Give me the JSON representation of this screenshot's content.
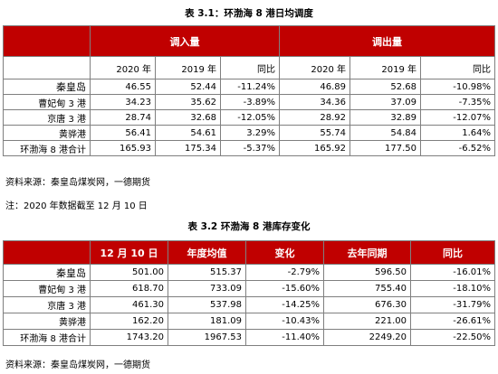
{
  "table1": {
    "caption": "表 3.1：环渤海 8 港日均调度",
    "group_headers": [
      "调入量",
      "调出量"
    ],
    "sub_headers": [
      "2020 年",
      "2019 年",
      "同比",
      "2020 年",
      "2019 年",
      "同比"
    ],
    "rows": [
      {
        "name": "秦皇岛",
        "values": [
          "46.55",
          "52.44",
          "-11.24%",
          "46.89",
          "52.68",
          "-10.98%"
        ]
      },
      {
        "name": "曹妃甸 3 港",
        "values": [
          "34.23",
          "35.62",
          "-3.89%",
          "34.36",
          "37.09",
          "-7.35%"
        ]
      },
      {
        "name": "京唐 3 港",
        "values": [
          "28.74",
          "32.68",
          "-12.05%",
          "28.92",
          "32.89",
          "-12.07%"
        ]
      },
      {
        "name": "黄骅港",
        "values": [
          "56.41",
          "54.61",
          "3.29%",
          "55.74",
          "54.84",
          "1.64%"
        ]
      },
      {
        "name": "环渤海 8 港合计",
        "values": [
          "165.93",
          "175.34",
          "-5.37%",
          "165.92",
          "177.50",
          "-6.52%"
        ]
      }
    ]
  },
  "source1": "资料来源：秦皇岛煤炭网，一德期货",
  "note": "注：2020 年数据截至 12 月 10 日",
  "table2": {
    "caption": "表 3.2 环渤海 8 港库存变化",
    "headers": [
      "12 月 10 日",
      "年度均值",
      "变化",
      "去年同期",
      "同比"
    ],
    "rows": [
      {
        "name": "秦皇岛",
        "values": [
          "501.00",
          "515.37",
          "-2.79%",
          "596.50",
          "-16.01%"
        ]
      },
      {
        "name": "曹妃甸 3 港",
        "values": [
          "618.70",
          "733.09",
          "-15.60%",
          "755.40",
          "-18.10%"
        ]
      },
      {
        "name": "京唐 3 港",
        "values": [
          "461.30",
          "537.98",
          "-14.25%",
          "676.30",
          "-31.79%"
        ]
      },
      {
        "name": "黄骅港",
        "values": [
          "162.20",
          "181.09",
          "-10.43%",
          "221.00",
          "-26.61%"
        ]
      },
      {
        "name": "环渤海 8 港合计",
        "values": [
          "1743.20",
          "1967.53",
          "-11.40%",
          "2249.20",
          "-22.50%"
        ]
      }
    ]
  },
  "source2": "资料来源：秦皇岛煤炭网，一德期货"
}
